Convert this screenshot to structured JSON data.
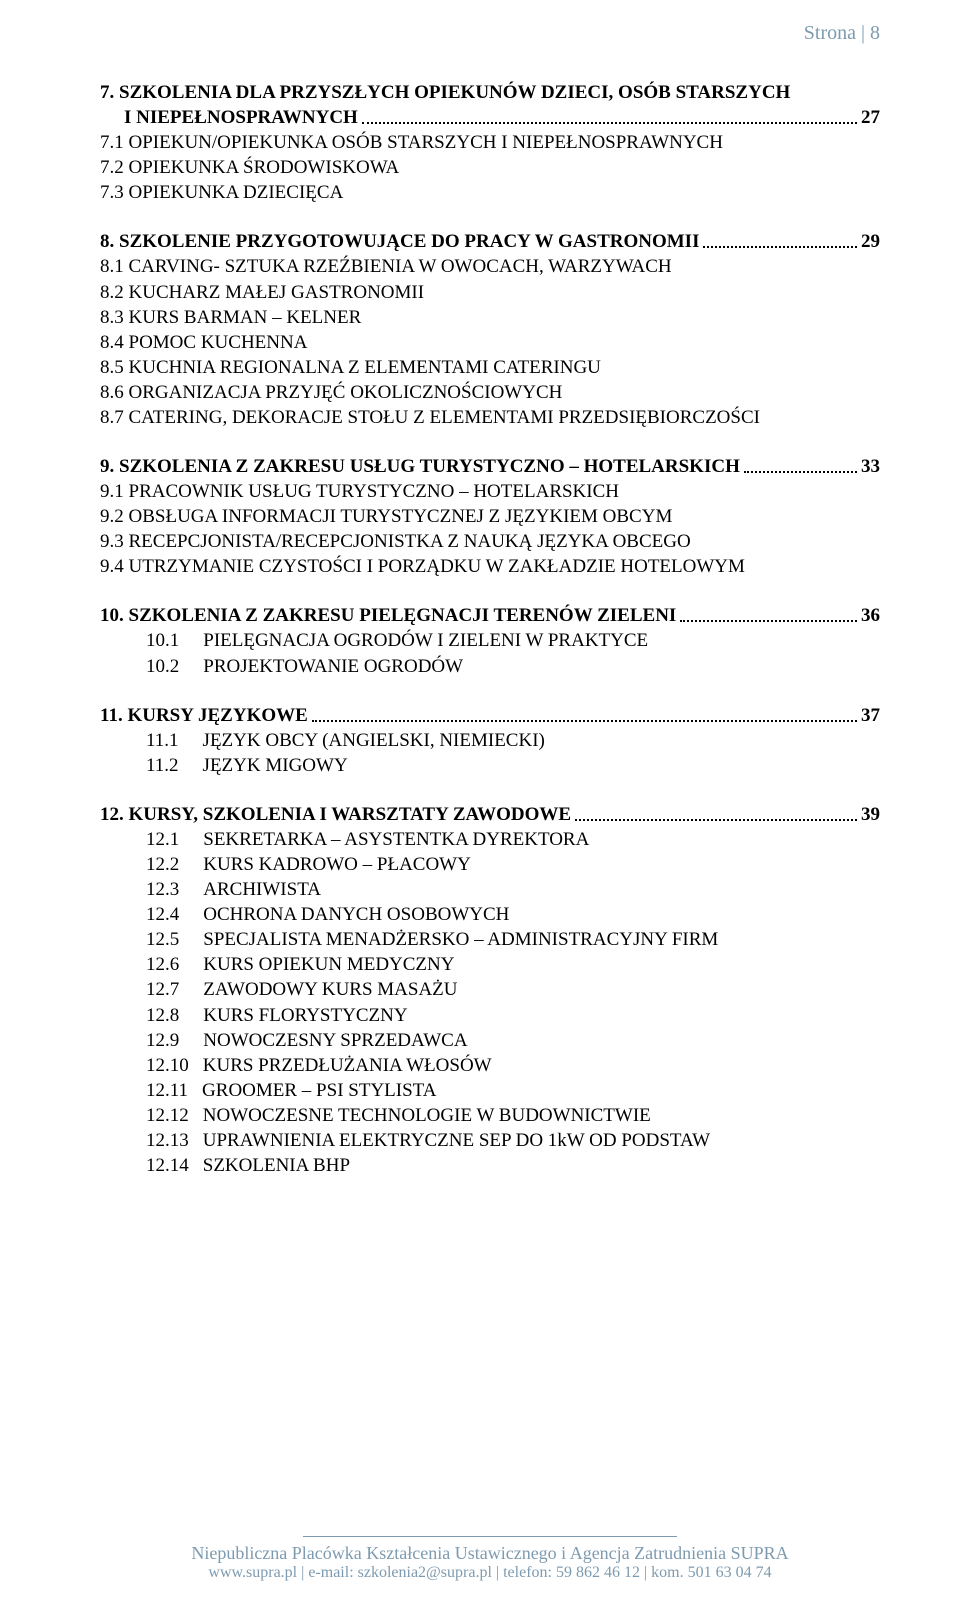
{
  "header": {
    "page_label": "Strona | 8"
  },
  "colors": {
    "header_text": "#7d9bb0",
    "body_text": "#000000",
    "background": "#ffffff"
  },
  "typography": {
    "body_font": "Times New Roman",
    "header_font": "Georgia",
    "body_fontsize_pt": 14,
    "header_fontsize_pt": 15,
    "footer_fontsize_pt": 13
  },
  "sections": [
    {
      "num": "7.",
      "title_line1": "SZKOLENIA DLA PRZYSZŁYCH OPIEKUNÓW DZIECI, OSÓB STARSZYCH",
      "title_line2": "I NIEPEŁNOSPRAWNYCH",
      "page": "27",
      "subs": [
        {
          "num": "7.1",
          "text": "OPIEKUN/OPIEKUNKA OSÓB STARSZYCH I NIEPEŁNOSPRAWNYCH"
        },
        {
          "num": "7.2",
          "text": "OPIEKUNKA ŚRODOWISKOWA"
        },
        {
          "num": "7.3",
          "text": "OPIEKUNKA DZIECIĘCA"
        }
      ]
    },
    {
      "num": "8.",
      "title_line1": "SZKOLENIE PRZYGOTOWUJĄCE DO PRACY W GASTRONOMII",
      "page": "29",
      "subs": [
        {
          "num": "8.1",
          "text": "CARVING- SZTUKA RZEŹBIENIA W OWOCACH, WARZYWACH"
        },
        {
          "num": "8.2",
          "text": "KUCHARZ MAŁEJ GASTRONOMII"
        },
        {
          "num": "8.3",
          "text": "KURS BARMAN – KELNER"
        },
        {
          "num": "8.4",
          "text": "POMOC KUCHENNA"
        },
        {
          "num": "8.5",
          "text": "KUCHNIA REGIONALNA Z ELEMENTAMI CATERINGU"
        },
        {
          "num": "8.6",
          "text": "ORGANIZACJA PRZYJĘĆ OKOLICZNOŚCIOWYCH"
        },
        {
          "num": "8.7",
          "text": "CATERING, DEKORACJE STOŁU Z ELEMENTAMI PRZEDSIĘBIORCZOŚCI"
        }
      ]
    },
    {
      "num": "9.",
      "title_line1": "SZKOLENIA Z ZAKRESU USŁUG TURYSTYCZNO – HOTELARSKICH",
      "page": "33",
      "subs": [
        {
          "num": "9.1",
          "text": "PRACOWNIK USŁUG TURYSTYCZNO – HOTELARSKICH"
        },
        {
          "num": "9.2",
          "text": "OBSŁUGA INFORMACJI TURYSTYCZNEJ Z JĘZYKIEM OBCYM"
        },
        {
          "num": "9.3",
          "text": "RECEPCJONISTA/RECEPCJONISTKA Z NAUKĄ JĘZYKA OBCEGO"
        },
        {
          "num": "9.4",
          "text": "UTRZYMANIE CZYSTOŚCI I PORZĄDKU W ZAKŁADZIE HOTELOWYM"
        }
      ]
    },
    {
      "num": "10.",
      "title_line1": "SZKOLENIA Z ZAKRESU PIELĘGNACJI TERENÓW ZIELENI",
      "page": "36",
      "indent_subs": true,
      "subs": [
        {
          "num": "10.1",
          "text": "PIELĘGNACJA OGRODÓW I ZIELENI W PRAKTYCE"
        },
        {
          "num": "10.2",
          "text": "PROJEKTOWANIE OGRODÓW"
        }
      ]
    },
    {
      "num": "11.",
      "title_line1": "KURSY JĘZYKOWE",
      "page": "37",
      "indent_subs": true,
      "subs": [
        {
          "num": "11.1",
          "text": "JĘZYK OBCY (ANGIELSKI, NIEMIECKI)"
        },
        {
          "num": "11.2",
          "text": "JĘZYK MIGOWY"
        }
      ]
    },
    {
      "num": "12.",
      "title_line1": "KURSY, SZKOLENIA I WARSZTATY ZAWODOWE",
      "page": "39",
      "indent_subs": true,
      "subs": [
        {
          "num": "12.1",
          "text": "SEKRETARKA – ASYSTENTKA DYREKTORA"
        },
        {
          "num": "12.2",
          "text": "KURS KADROWO – PŁACOWY"
        },
        {
          "num": "12.3",
          "text": "ARCHIWISTA"
        },
        {
          "num": "12.4",
          "text": "OCHRONA DANYCH OSOBOWYCH"
        },
        {
          "num": "12.5",
          "text": "SPECJALISTA MENADŻERSKO – ADMINISTRACYJNY FIRM"
        },
        {
          "num": "12.6",
          "text": "KURS OPIEKUN MEDYCZNY"
        },
        {
          "num": "12.7",
          "text": "ZAWODOWY KURS MASAŻU"
        },
        {
          "num": "12.8",
          "text": "KURS FLORYSTYCZNY"
        },
        {
          "num": "12.9",
          "text": "NOWOCZESNY SPRZEDAWCA"
        },
        {
          "num": "12.10",
          "text": "KURS PRZEDŁUŻANIA WŁOSÓW"
        },
        {
          "num": "12.11",
          "text": "GROOMER – PSI STYLISTA"
        },
        {
          "num": "12.12",
          "text": "NOWOCZESNE TECHNOLOGIE W BUDOWNICTWIE"
        },
        {
          "num": "12.13",
          "text": "UPRAWNIENIA ELEKTRYCZNE SEP DO 1kW OD PODSTAW"
        },
        {
          "num": "12.14",
          "text": "SZKOLENIA BHP"
        }
      ]
    }
  ],
  "footer": {
    "line1": "Niepubliczna Placówka Kształcenia Ustawicznego i Agencja Zatrudnienia SUPRA",
    "line2": "www.supra.pl | e-mail: szkolenia2@supra.pl | telefon: 59 862 46 12 | kom. 501 63 04 74"
  }
}
